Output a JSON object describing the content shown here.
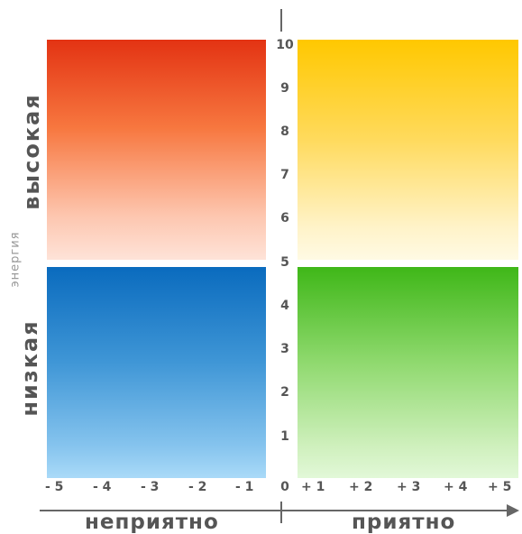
{
  "title": "",
  "axis": {
    "x_negative_label": "неприятно",
    "x_positive_label": "приятно",
    "y_label": "энергия",
    "y_high_label": "высокая",
    "y_low_label": "низкая"
  },
  "y_ticks": [
    "10",
    "9",
    "8",
    "7",
    "6",
    "5",
    "4",
    "3",
    "2",
    "1",
    "0"
  ],
  "x_ticks": [
    "- 5",
    "- 4",
    "- 3",
    "- 2",
    "- 1",
    "+ 1",
    "+ 2",
    "+ 3",
    "+ 4",
    "+ 5"
  ],
  "quadrants": [
    {
      "name": "high-unpleasant",
      "color": "#e33313"
    },
    {
      "name": "high-pleasant",
      "color": "#ffc800"
    },
    {
      "name": "low-unpleasant",
      "color": "#0a6bbe"
    },
    {
      "name": "low-pleasant",
      "color": "#3fb718"
    }
  ]
}
